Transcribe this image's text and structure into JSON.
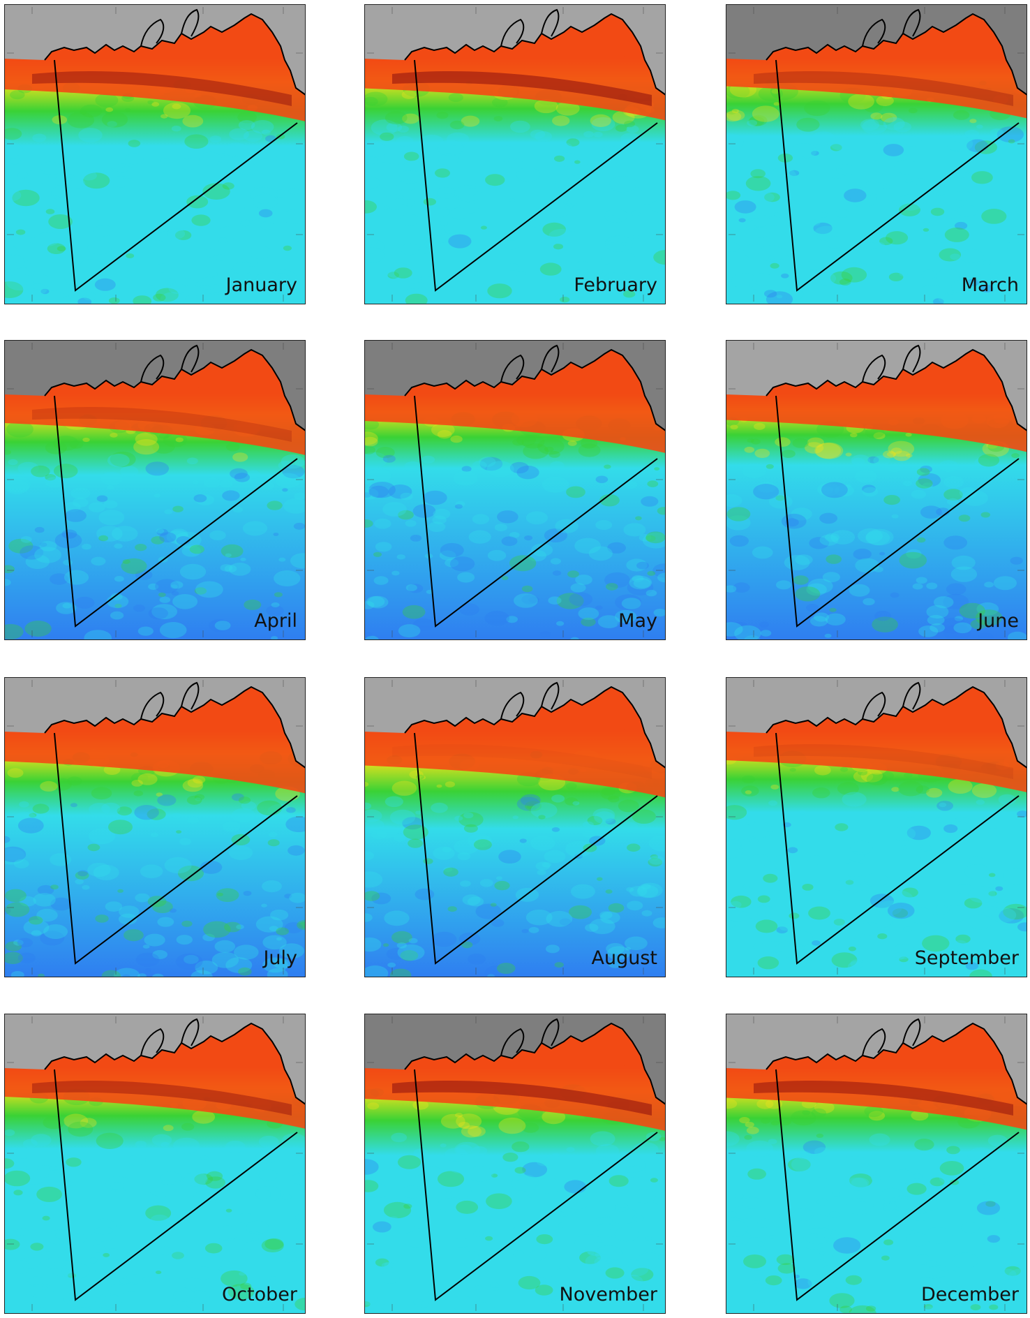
{
  "figure": {
    "colors": {
      "land": "#a4a4a4",
      "land_dark": "#7e7e7e",
      "coastline": "#000000",
      "high": "#f24a14",
      "peak": "#8a0e0e",
      "mid": "#f0e21c",
      "green": "#3ad235",
      "low": "#33dcea",
      "lowest": "#2f7ef0"
    },
    "panels": [
      {
        "month": "January",
        "front_level": 0.92,
        "spread": 0.6,
        "cool": 0.05,
        "dark_land": false
      },
      {
        "month": "February",
        "front_level": 0.95,
        "spread": 0.55,
        "cool": 0.05,
        "dark_land": false
      },
      {
        "month": "March",
        "front_level": 0.85,
        "spread": 0.45,
        "cool": 0.2,
        "dark_land": true
      },
      {
        "month": "April",
        "front_level": 0.8,
        "spread": 0.5,
        "cool": 0.45,
        "dark_land": true
      },
      {
        "month": "May",
        "front_level": 0.7,
        "spread": 0.4,
        "cool": 0.6,
        "dark_land": true
      },
      {
        "month": "June",
        "front_level": 0.65,
        "spread": 0.35,
        "cool": 0.75,
        "dark_land": false
      },
      {
        "month": "July",
        "front_level": 0.7,
        "spread": 0.55,
        "cool": 0.5,
        "dark_land": false
      },
      {
        "month": "August",
        "front_level": 0.72,
        "spread": 0.75,
        "cool": 0.35,
        "dark_land": false
      },
      {
        "month": "September",
        "front_level": 0.75,
        "spread": 0.5,
        "cool": 0.2,
        "dark_land": false
      },
      {
        "month": "October",
        "front_level": 0.9,
        "spread": 0.5,
        "cool": 0.05,
        "dark_land": false
      },
      {
        "month": "November",
        "front_level": 0.95,
        "spread": 0.6,
        "cool": 0.05,
        "dark_land": true
      },
      {
        "month": "December",
        "front_level": 0.93,
        "spread": 0.55,
        "cool": 0.05,
        "dark_land": false
      }
    ]
  }
}
